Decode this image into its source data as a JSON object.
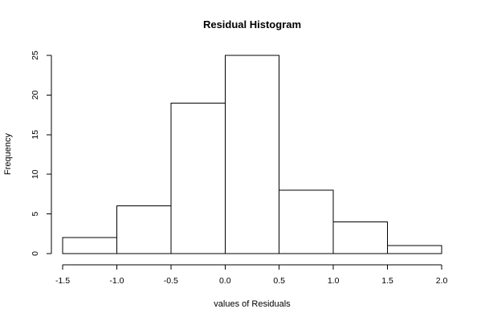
{
  "chart_data": {
    "type": "bar",
    "title": "Residual Histogram",
    "xlabel": "values of Residuals",
    "ylabel": "Frequency",
    "bins": [
      {
        "from": -1.5,
        "to": -1.0,
        "count": 2
      },
      {
        "from": -1.0,
        "to": -0.5,
        "count": 6
      },
      {
        "from": -0.5,
        "to": 0.0,
        "count": 19
      },
      {
        "from": 0.0,
        "to": 0.5,
        "count": 25
      },
      {
        "from": 0.5,
        "to": 1.0,
        "count": 8
      },
      {
        "from": 1.0,
        "to": 1.5,
        "count": 4
      },
      {
        "from": 1.5,
        "to": 2.0,
        "count": 1
      }
    ],
    "xlim": [
      -1.5,
      2.0
    ],
    "ylim": [
      0,
      25
    ],
    "x_ticks": [
      {
        "value": -1.5,
        "label": "-1.5"
      },
      {
        "value": -1.0,
        "label": "-1.0"
      },
      {
        "value": -0.5,
        "label": "-0.5"
      },
      {
        "value": 0.0,
        "label": "0.0"
      },
      {
        "value": 0.5,
        "label": "0.5"
      },
      {
        "value": 1.0,
        "label": "1.0"
      },
      {
        "value": 1.5,
        "label": "1.5"
      },
      {
        "value": 2.0,
        "label": "2.0"
      }
    ],
    "y_ticks": [
      {
        "value": 0,
        "label": "0"
      },
      {
        "value": 5,
        "label": "5"
      },
      {
        "value": 10,
        "label": "10"
      },
      {
        "value": 15,
        "label": "15"
      },
      {
        "value": 20,
        "label": "20"
      },
      {
        "value": 25,
        "label": "25"
      }
    ],
    "grid": false,
    "bar_fill": "#ffffff",
    "bar_stroke": "#000000"
  }
}
